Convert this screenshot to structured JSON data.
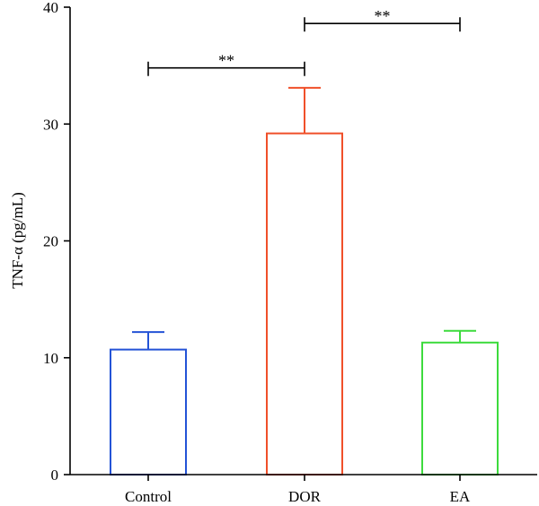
{
  "chart_data": {
    "type": "bar",
    "categories": [
      "Control",
      "DOR",
      "EA"
    ],
    "values": [
      10.7,
      29.2,
      11.3
    ],
    "errors": [
      1.5,
      3.9,
      1.0
    ],
    "colors": [
      "#2453d6",
      "#f0502a",
      "#3ddb3d"
    ],
    "ylabel": "TNF-α (pg/mL)",
    "ylim": [
      0,
      40
    ],
    "yticks": [
      0,
      10,
      20,
      30,
      40
    ],
    "grid": false,
    "significance": [
      {
        "from": 0,
        "to": 1,
        "label": "**",
        "y": 34.8
      },
      {
        "from": 1,
        "to": 2,
        "label": "**",
        "y": 38.6
      }
    ]
  }
}
